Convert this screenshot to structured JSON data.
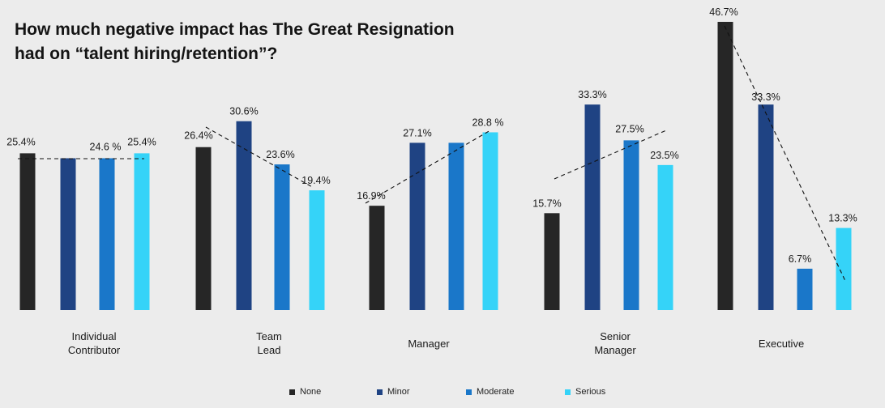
{
  "chart_data": {
    "type": "bar",
    "title_lines": [
      "How much negative impact has The Great Resignation",
      "had on “talent hiring/retention”?"
    ],
    "categories": [
      [
        "Individual",
        "Contributor"
      ],
      [
        "Team",
        "Lead"
      ],
      [
        "Manager"
      ],
      [
        "Senior",
        "Manager"
      ],
      [
        "Executive"
      ]
    ],
    "series": [
      {
        "name": "None",
        "color": "#262626",
        "values": [
          25.4,
          26.4,
          16.9,
          15.7,
          46.7
        ]
      },
      {
        "name": "Minor",
        "color": "#1f4383",
        "values": [
          24.6,
          30.6,
          27.1,
          33.3,
          33.3
        ]
      },
      {
        "name": "Moderate",
        "color": "#1a77c9",
        "values": [
          24.6,
          23.6,
          27.1,
          27.5,
          6.7
        ]
      },
      {
        "name": "Serious",
        "color": "#35d3f8",
        "values": [
          25.4,
          19.4,
          28.8,
          23.5,
          13.3
        ]
      }
    ],
    "data_labels": [
      [
        "25.4%",
        "",
        "24.6 %",
        "25.4%"
      ],
      [
        "26.4%",
        "30.6%",
        "23.6%",
        "19.4%"
      ],
      [
        "16.9%",
        "27.1%",
        "",
        "28.8 %"
      ],
      [
        "15.7%",
        "33.3%",
        "27.5%",
        "23.5%"
      ],
      [
        "46.7%",
        "33.3%",
        "6.7%",
        "13.3%"
      ]
    ],
    "trendlines": "dashed linear trend per group",
    "ylim": [
      0,
      48
    ],
    "xlabel": "",
    "ylabel": "",
    "legend_position": "bottom",
    "grid": false
  }
}
